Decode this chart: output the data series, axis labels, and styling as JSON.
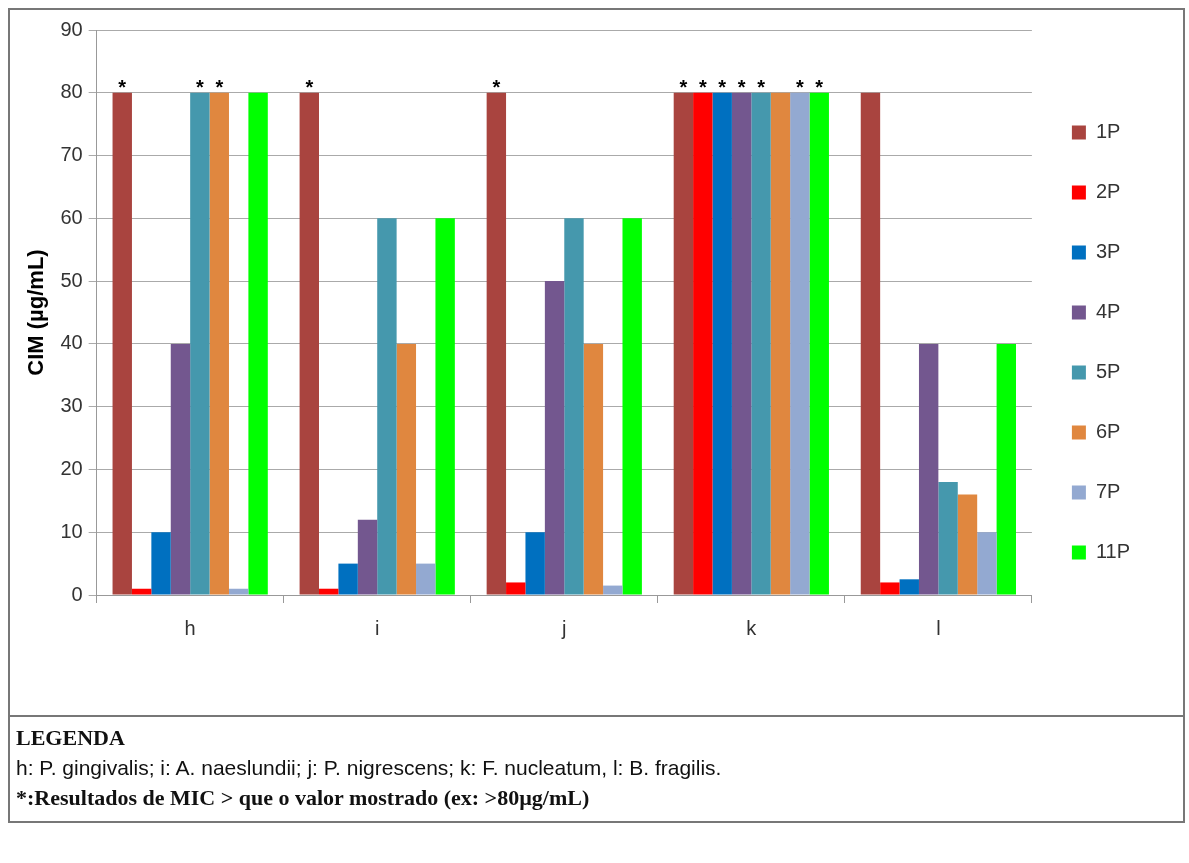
{
  "chart_data": {
    "type": "bar",
    "ylabel": "CIM (µg/mL)",
    "categories": [
      "h",
      "i",
      "j",
      "k",
      "l"
    ],
    "series": [
      {
        "name": "1P",
        "color": "#a9443f",
        "values": [
          80,
          80,
          80,
          80,
          80
        ],
        "value_labels": [
          "*",
          "*",
          "*",
          "*",
          null
        ]
      },
      {
        "name": "2P",
        "color": "#ff0000",
        "values": [
          1,
          1,
          2,
          80,
          2
        ],
        "value_labels": [
          null,
          null,
          null,
          "*",
          null
        ]
      },
      {
        "name": "3P",
        "color": "#0070c0",
        "values": [
          10,
          5,
          10,
          80,
          2.5
        ],
        "value_labels": [
          null,
          null,
          null,
          "*",
          null
        ]
      },
      {
        "name": "4P",
        "color": "#73578f",
        "values": [
          40,
          12,
          50,
          80,
          40
        ],
        "value_labels": [
          null,
          null,
          null,
          "*",
          null
        ]
      },
      {
        "name": "5P",
        "color": "#4598ad",
        "values": [
          80,
          60,
          60,
          80,
          18
        ],
        "value_labels": [
          "*",
          null,
          null,
          "*",
          null
        ]
      },
      {
        "name": "6P",
        "color": "#e0873f",
        "values": [
          80,
          40,
          40,
          80,
          16
        ],
        "value_labels": [
          "*",
          null,
          null,
          null,
          null
        ]
      },
      {
        "name": "7P",
        "color": "#93a9d1",
        "values": [
          1,
          5,
          1.5,
          80,
          10
        ],
        "value_labels": [
          null,
          null,
          null,
          "*",
          null
        ]
      },
      {
        "name": "11P",
        "color": "#00ff00",
        "values": [
          80,
          60,
          60,
          80,
          40
        ],
        "value_labels": [
          null,
          null,
          null,
          "*",
          null
        ]
      }
    ],
    "ylim": [
      0,
      90
    ],
    "yticks": [
      0,
      10,
      20,
      30,
      40,
      50,
      60,
      70,
      80,
      90
    ],
    "grid": "y",
    "legend": "right",
    "annotations": [
      "LEGENDA",
      "h: P. gingivalis; i: A. naeslundii; j: P. nigrescens; k: F. nucleatum, l: B.  fragilis.",
      "*:Resultados de MIC > que o valor mostrado (ex: >80µg/mL)"
    ]
  }
}
